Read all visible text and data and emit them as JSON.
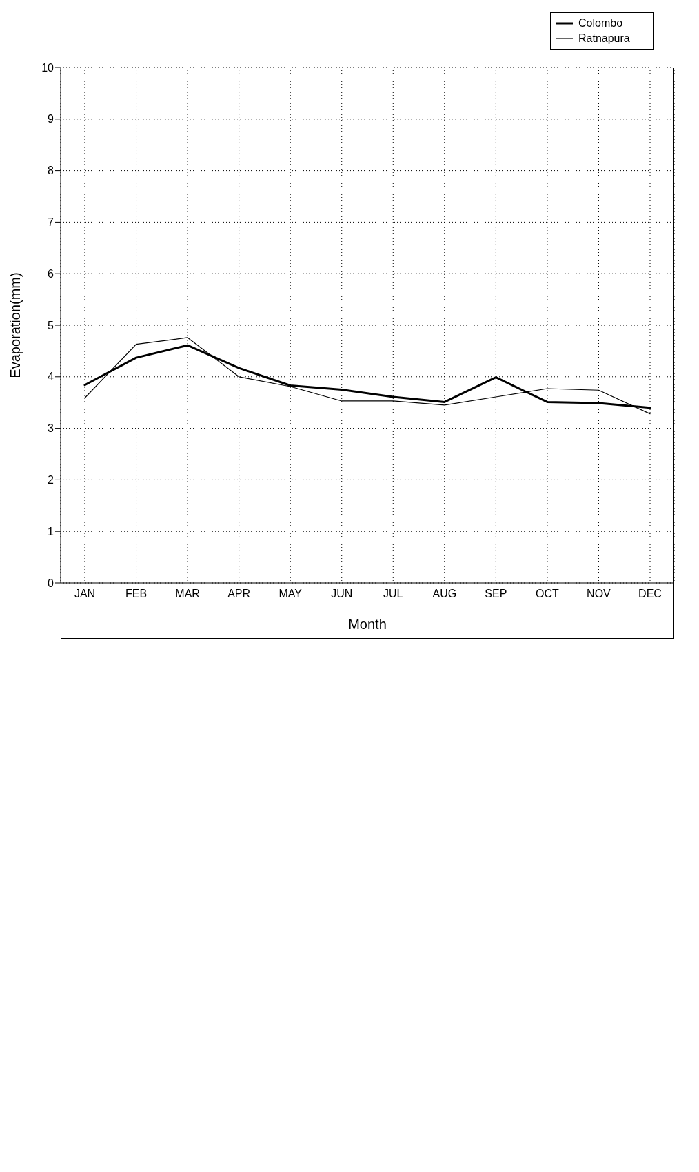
{
  "chart_data": {
    "type": "line",
    "xlabel": "Month",
    "ylabel": "Evaporation(mm)",
    "categories": [
      "JAN",
      "FEB",
      "MAR",
      "APR",
      "MAY",
      "JUN",
      "JUL",
      "AUG",
      "SEP",
      "OCT",
      "NOV",
      "DEC"
    ],
    "series": [
      {
        "name": "Colombo",
        "color": "#000000",
        "values": [
          3.84,
          4.37,
          4.61,
          4.17,
          3.83,
          3.75,
          3.61,
          3.51,
          3.99,
          3.51,
          3.49,
          3.4
        ]
      },
      {
        "name": "Ratnapura",
        "color": "#000000",
        "values": [
          3.59,
          4.63,
          4.76,
          4.0,
          3.81,
          3.53,
          3.53,
          3.45,
          3.61,
          3.77,
          3.74,
          3.28
        ]
      }
    ],
    "ylim": [
      0,
      10
    ],
    "yticks": [
      0,
      1,
      2,
      3,
      4,
      5,
      6,
      7,
      8,
      9,
      10
    ],
    "grid": true,
    "legend": "top right",
    "marker": "none",
    "line_style": "solid"
  }
}
